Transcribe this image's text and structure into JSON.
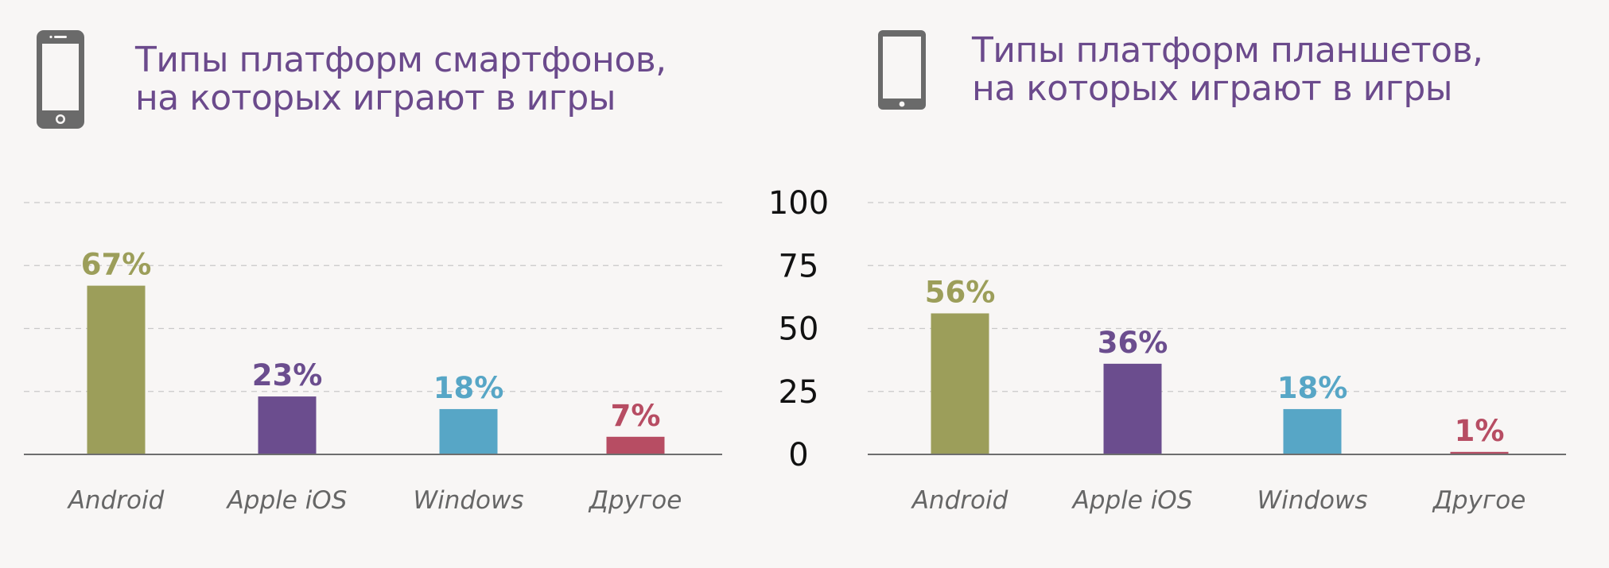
{
  "colors": {
    "android": "#9c9e5a",
    "ios": "#6b4d8e",
    "windows": "#57a6c6",
    "other": "#b74d63",
    "title": "#6b4a8c",
    "icon": "#6a6a6a",
    "grid": "#c9c9c9",
    "axis": "#6e6e6e",
    "category_label": "#666666",
    "tick_label": "#111111"
  },
  "icons": {
    "left": "smartphone-icon",
    "right": "tablet-icon"
  },
  "chart_data": [
    {
      "type": "bar",
      "title": "Типы платформ смартфонов,\nна которых играют в игры",
      "title_lines": [
        "Типы платформ смартфонов,",
        "на которых играют в игры"
      ],
      "categories": [
        "Android",
        "Apple iOS",
        "Windows",
        "Другое"
      ],
      "values": [
        67,
        23,
        18,
        7
      ],
      "value_labels": [
        "67%",
        "23%",
        "18%",
        "7%"
      ],
      "bar_colors": [
        "#9c9e5a",
        "#6b4d8e",
        "#57a6c6",
        "#b74d63"
      ],
      "ylim": [
        0,
        100
      ],
      "yticks": [
        "100",
        "75",
        "50",
        "25",
        "0"
      ],
      "grid": true
    },
    {
      "type": "bar",
      "title": "Типы платформ планшетов,\nна которых играют в игры",
      "title_lines": [
        "Типы платформ планшетов,",
        "на которых играют в игры"
      ],
      "categories": [
        "Android",
        "Apple iOS",
        "Windows",
        "Другое"
      ],
      "values": [
        56,
        36,
        18,
        1
      ],
      "value_labels": [
        "56%",
        "36%",
        "18%",
        "1%"
      ],
      "bar_colors": [
        "#9c9e5a",
        "#6b4d8e",
        "#57a6c6",
        "#b74d63"
      ],
      "ylim": [
        0,
        100
      ],
      "yticks": [
        "100",
        "75",
        "50",
        "25",
        "0"
      ],
      "grid": true
    }
  ]
}
